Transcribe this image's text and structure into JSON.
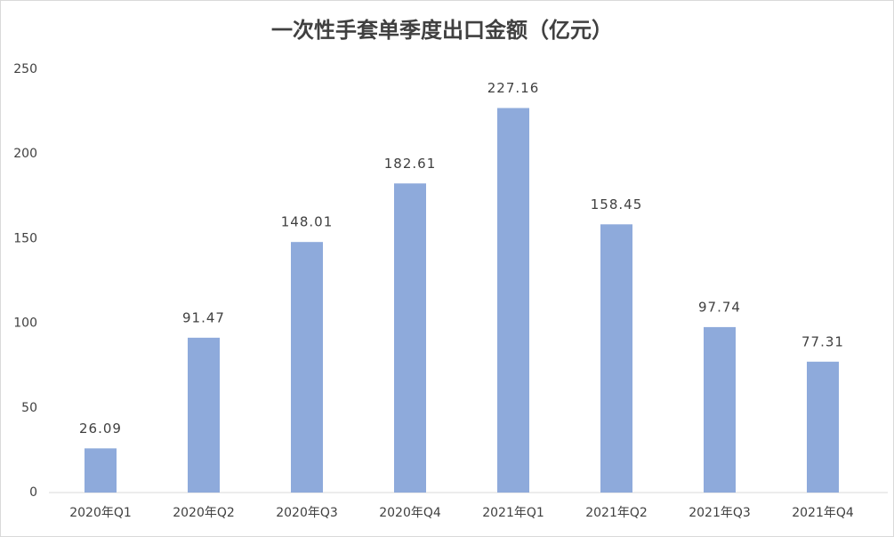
{
  "chart_data": {
    "type": "bar",
    "title": "一次性手套单季度出口金额（亿元）",
    "categories": [
      "2020年Q1",
      "2020年Q2",
      "2020年Q3",
      "2020年Q4",
      "2021年Q1",
      "2021年Q2",
      "2021年Q3",
      "2021年Q4"
    ],
    "values": [
      26.09,
      91.47,
      148.01,
      182.61,
      227.16,
      158.45,
      97.74,
      77.31
    ],
    "color": "#8eaadb",
    "ylim": [
      0,
      250
    ],
    "yticks": [
      0,
      50,
      100,
      150,
      200,
      250
    ],
    "grid": false
  }
}
